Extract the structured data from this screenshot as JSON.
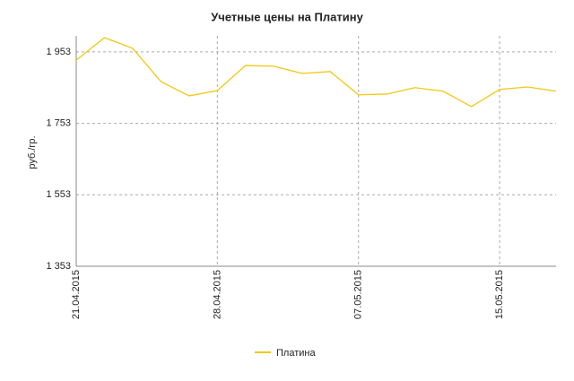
{
  "chart_data": {
    "type": "line",
    "title": "Учетные цены на Платину",
    "y_label": "руб./гр.",
    "categories": [
      "21.04.2015",
      null,
      null,
      null,
      null,
      "28.04.2015",
      null,
      null,
      null,
      null,
      "07.05.2015",
      null,
      null,
      null,
      null,
      "15.05.2015",
      null,
      null
    ],
    "series": [
      {
        "name": "Платина",
        "color": "#f2c80f",
        "values": [
          1930,
          1993,
          1963,
          1870,
          1830,
          1845,
          1915,
          1913,
          1893,
          1898,
          1833,
          1835,
          1853,
          1843,
          1800,
          1848,
          1855,
          1843
        ]
      }
    ],
    "ylim": [
      1353,
      1998
    ],
    "yticks": [
      {
        "value": 1353,
        "label": "1 353"
      },
      {
        "value": 1553,
        "label": "1 553"
      },
      {
        "value": 1753,
        "label": "1 753"
      },
      {
        "value": 1953,
        "label": "1 953"
      }
    ],
    "grid": true,
    "legend": "bottom"
  }
}
